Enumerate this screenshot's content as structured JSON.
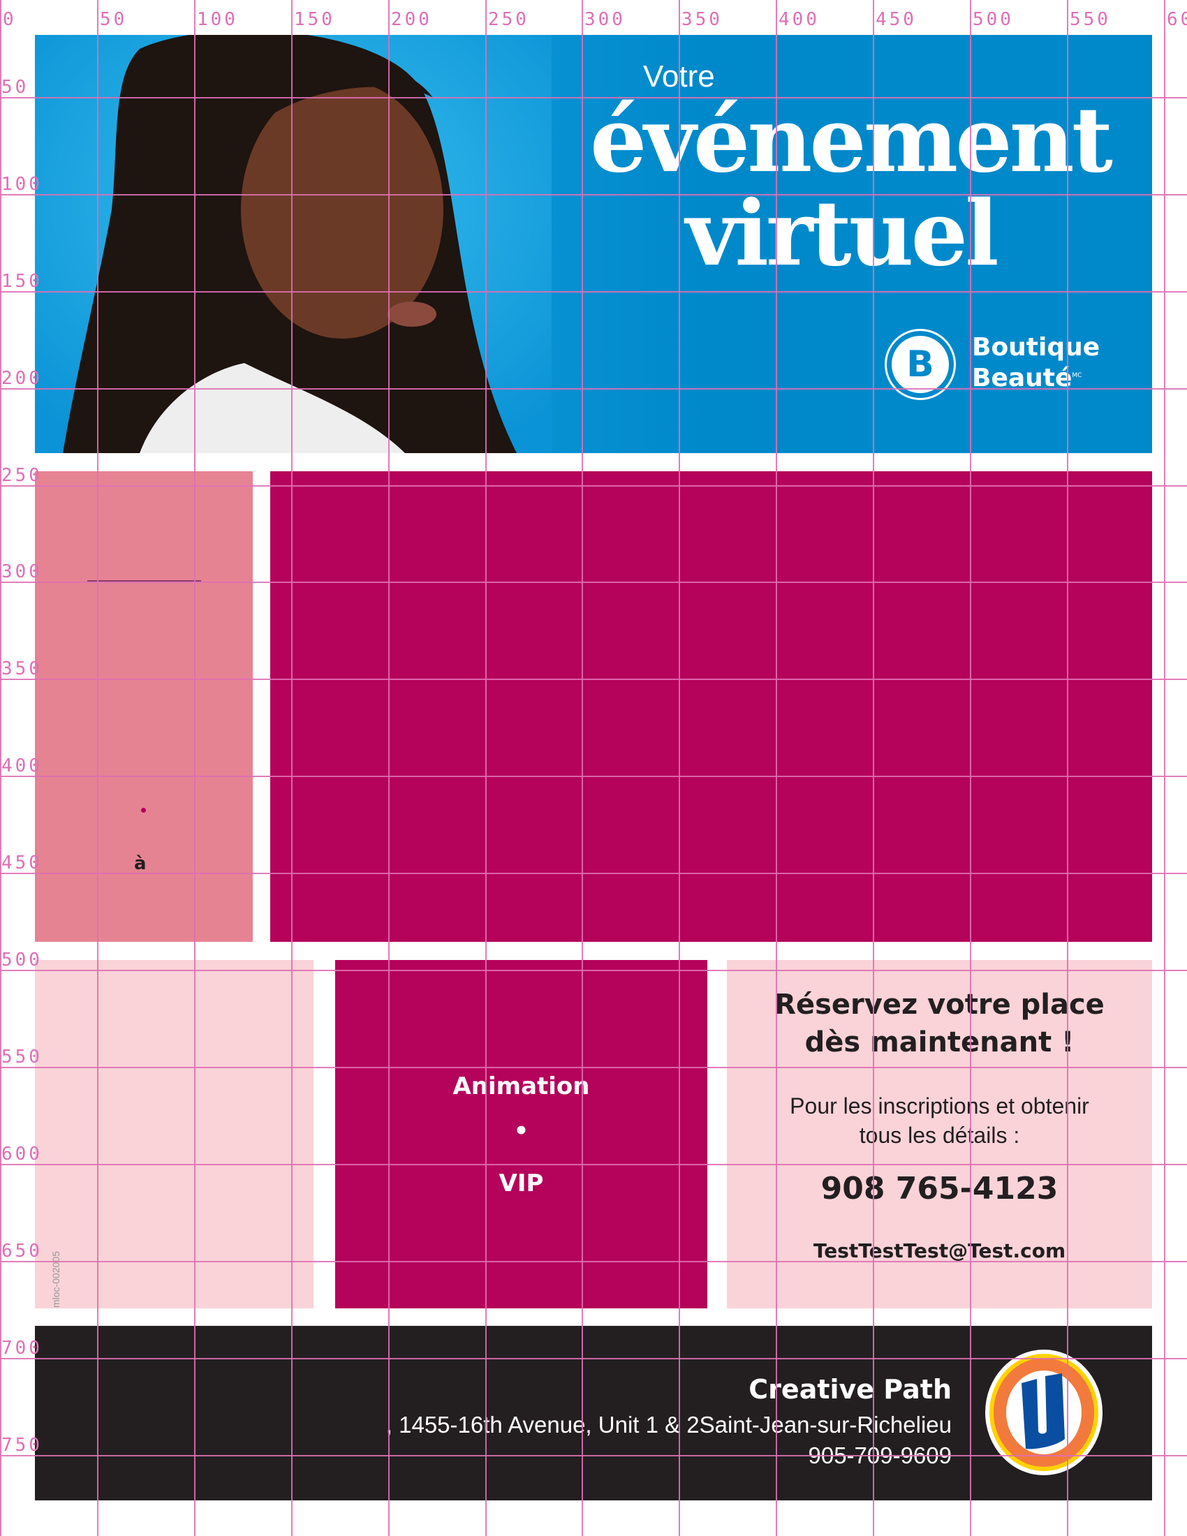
{
  "banner": {
    "kicker": "Votre",
    "title_line1": "événement",
    "title_line2": "virtuel",
    "brand_letter": "B",
    "brand_line1": "Boutique",
    "brand_line2": "Beauté",
    "brand_mark": "MC",
    "background_color": "#0089ca"
  },
  "left_panel": {
    "separator_char": "•",
    "a_text": "à",
    "color": "#e68393"
  },
  "middle_panel": {
    "line1": "Animation",
    "bullet": "•",
    "line2": "VIP",
    "color": "#b5025a"
  },
  "reserve_panel": {
    "heading_line1": "Réservez votre place",
    "heading_line2": "dès maintenant !",
    "text_line1": "Pour les inscriptions et obtenir",
    "text_line2": "tous les détails :",
    "phone": "908 765-4123",
    "email": "TestTestTest@Test.com",
    "color": "#f9d3d8"
  },
  "footer": {
    "store_name": "Creative Path",
    "address": ", 1455-16th Avenue, Unit 1 & 2Saint-Jean-sur-Richelieu",
    "phone": "905-709-9609",
    "logo_letter": "U",
    "color": "#231f20"
  },
  "document_code": "mloc-002005",
  "grid": {
    "top_labels": [
      "0",
      "50",
      "100",
      "150",
      "200",
      "250",
      "300",
      "350",
      "400",
      "450",
      "500",
      "550",
      "60"
    ],
    "left_labels": [
      "50",
      "100",
      "150",
      "200",
      "250",
      "300",
      "350",
      "400",
      "450",
      "500",
      "550",
      "600",
      "650",
      "700",
      "750"
    ],
    "color": "#de6fb5"
  }
}
